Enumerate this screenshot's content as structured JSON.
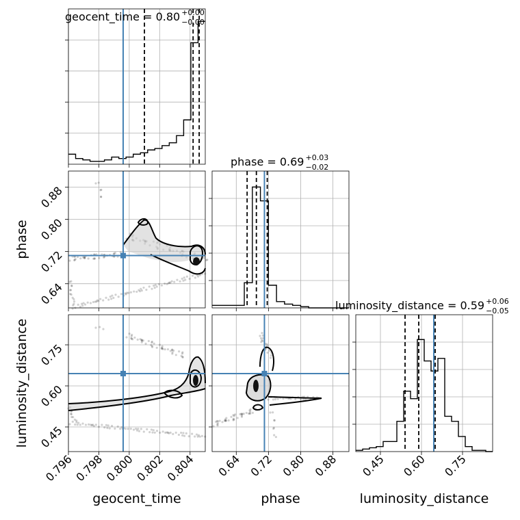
{
  "chart_data": {
    "type": "corner",
    "parameters": [
      "geocent_time",
      "phase",
      "luminosity_distance"
    ],
    "truths": {
      "geocent_time": 0.7996,
      "phase": 0.71,
      "luminosity_distance": 0.645
    },
    "titles": [
      {
        "param": "geocent_time",
        "text": "geocent_time = 0.80",
        "upper": "+0.00",
        "lower": "−0.00"
      },
      {
        "param": "phase",
        "text": "phase = 0.69",
        "upper": "+0.03",
        "lower": "−0.02"
      },
      {
        "param": "luminosity_distance",
        "text": "luminosity_distance = 0.59",
        "upper": "+0.06",
        "lower": "−0.05"
      }
    ],
    "axes": {
      "geocent_time": {
        "lim": [
          0.796,
          0.805
        ],
        "ticks": [
          "0.796",
          "0.798",
          "0.800",
          "0.802",
          "0.804"
        ],
        "tick_values": [
          0.796,
          0.798,
          0.8,
          0.802,
          0.804
        ]
      },
      "phase": {
        "lim": [
          0.58,
          0.92
        ],
        "ticks": [
          "0.64",
          "0.72",
          "0.80",
          "0.88"
        ],
        "tick_values": [
          0.64,
          0.72,
          0.8,
          0.88
        ]
      },
      "luminosity_distance": {
        "lim": [
          0.36,
          0.86
        ],
        "ticks": [
          "0.45",
          "0.60",
          "0.75"
        ],
        "tick_values": [
          0.45,
          0.6,
          0.75
        ]
      }
    },
    "histograms": {
      "geocent_time": {
        "range": [
          0.796,
          0.805
        ],
        "counts": [
          0.07,
          0.04,
          0.03,
          0.02,
          0.02,
          0.03,
          0.05,
          0.04,
          0.05,
          0.07,
          0.08,
          0.1,
          0.11,
          0.13,
          0.15,
          0.2,
          0.31,
          0.85,
          1.0
        ],
        "quantiles": [
          0.801,
          0.8042,
          0.8046
        ]
      },
      "phase": {
        "range": [
          0.58,
          0.92
        ],
        "counts": [
          0.02,
          0.02,
          0.02,
          0.02,
          0.2,
          0.96,
          0.85,
          0.18,
          0.05,
          0.03,
          0.02,
          0.01,
          0.0,
          0.0,
          0.0,
          0.0,
          0.0
        ],
        "quantiles": [
          0.667,
          0.69,
          0.717
        ]
      },
      "luminosity_distance": {
        "range": [
          0.36,
          0.86
        ],
        "counts": [
          0.01,
          0.02,
          0.03,
          0.04,
          0.08,
          0.08,
          0.24,
          0.48,
          0.42,
          0.89,
          0.72,
          0.64,
          0.74,
          0.28,
          0.24,
          0.12,
          0.04,
          0.01,
          0.01,
          0.0
        ],
        "quantiles": [
          0.54,
          0.59,
          0.65
        ]
      }
    },
    "xlabels": [
      "geocent_time",
      "phase",
      "luminosity_distance"
    ],
    "ylabels": [
      "",
      "phase",
      "luminosity_distance"
    ],
    "grid": true
  }
}
